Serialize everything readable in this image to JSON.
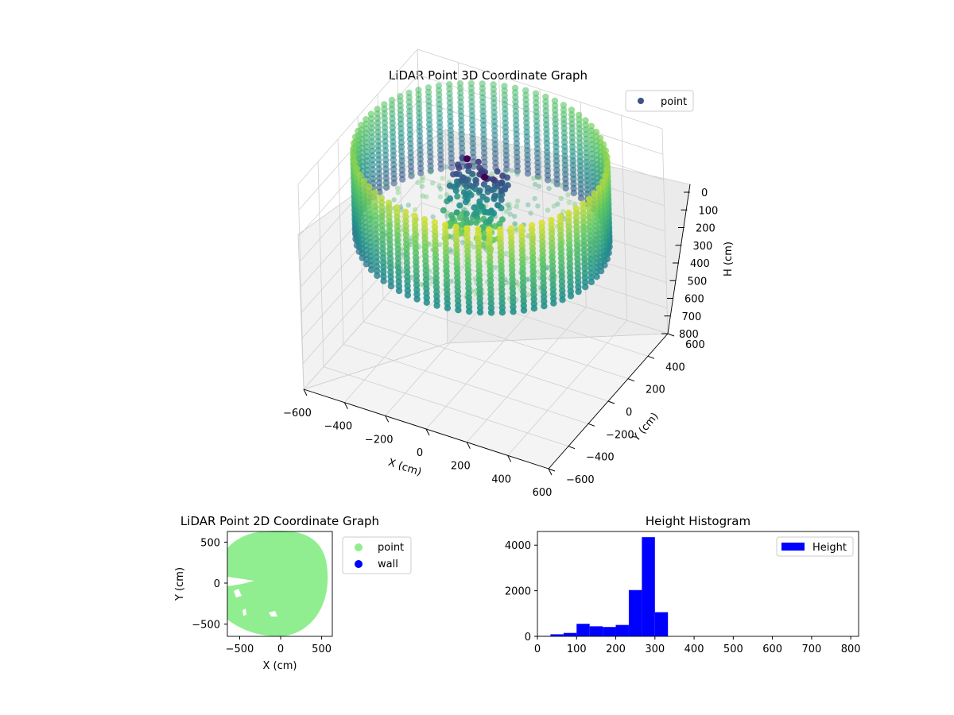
{
  "figure": {
    "background": "#ffffff"
  },
  "chart_data": [
    {
      "type": "scatter",
      "title": "LiDAR Point 3D Coordinate Graph",
      "xlabel": "X (cm)",
      "ylabel": "Y (cm)",
      "zlabel": "H (cm)",
      "xlim": [
        -600,
        600
      ],
      "ylim": [
        -600,
        600
      ],
      "zlim": [
        800,
        0
      ],
      "x_ticks": [
        "−600",
        "−400",
        "−200",
        "0",
        "200",
        "400",
        "600"
      ],
      "y_ticks": [
        "−600",
        "−400",
        "−200",
        "0",
        "200",
        "400",
        "600"
      ],
      "z_ticks": [
        "0",
        "100",
        "200",
        "300",
        "400",
        "500",
        "600",
        "700",
        "800"
      ],
      "z_inverted": true,
      "grid": true,
      "legend": {
        "entries": [
          "point"
        ],
        "position": "upper right"
      },
      "colormap": "viridis",
      "structures": [
        {
          "kind": "cylindrical-wall",
          "radius": 590,
          "h_top": 0,
          "h_bottom": 330
        },
        {
          "kind": "floor",
          "h": 280
        },
        {
          "kind": "cluster",
          "x": [
            -200,
            80
          ],
          "y": [
            -60,
            60
          ],
          "h": [
            40,
            330
          ]
        }
      ],
      "colors": {
        "point_legend": "#3b528b",
        "pane": "#f2f2f2",
        "grid": "#cccccc"
      }
    },
    {
      "type": "scatter",
      "title": "LiDAR Point 2D Coordinate Graph",
      "xlabel": "X (cm)",
      "ylabel": "Y (cm)",
      "xlim": [
        -650,
        630
      ],
      "ylim": [
        -650,
        630
      ],
      "x_ticks": [
        "−500",
        "0",
        "500"
      ],
      "y_ticks": [
        "500",
        "0",
        "−500"
      ],
      "series": [
        {
          "name": "point",
          "color": "#90ee90"
        },
        {
          "name": "wall",
          "color": "#0000ff"
        }
      ],
      "legend": {
        "entries": [
          "point",
          "wall"
        ],
        "position": "outside right"
      }
    },
    {
      "type": "bar",
      "title": "Height Histogram",
      "xlim": [
        0,
        820
      ],
      "ylim": [
        0,
        4600
      ],
      "x_ticks": [
        "0",
        "100",
        "200",
        "300",
        "400",
        "500",
        "600",
        "700",
        "800"
      ],
      "y_ticks": [
        "0",
        "2000",
        "4000"
      ],
      "bin_edges": [
        0,
        33.3,
        66.7,
        100,
        133.3,
        166.7,
        200,
        233.3,
        266.7,
        300,
        333.3,
        366.7,
        400,
        433.3,
        466.7,
        500,
        533.3,
        566.7,
        600,
        633.3,
        666.7,
        700,
        733.3,
        766.7,
        800
      ],
      "values": [
        20,
        90,
        150,
        550,
        440,
        410,
        500,
        2030,
        4350,
        1060,
        0,
        0,
        0,
        0,
        0,
        0,
        0,
        0,
        0,
        0,
        0,
        0,
        0,
        0
      ],
      "series": [
        {
          "name": "Height",
          "color": "#0000ff"
        }
      ],
      "legend": {
        "entries": [
          "Height"
        ],
        "position": "upper right"
      }
    }
  ]
}
